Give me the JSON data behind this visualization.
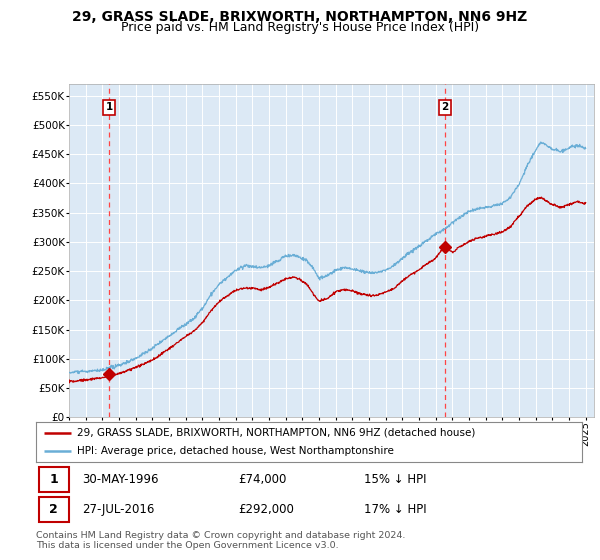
{
  "title": "29, GRASS SLADE, BRIXWORTH, NORTHAMPTON, NN6 9HZ",
  "subtitle": "Price paid vs. HM Land Registry's House Price Index (HPI)",
  "ylim": [
    0,
    570000
  ],
  "yticks": [
    0,
    50000,
    100000,
    150000,
    200000,
    250000,
    300000,
    350000,
    400000,
    450000,
    500000,
    550000
  ],
  "ytick_labels": [
    "£0",
    "£50K",
    "£100K",
    "£150K",
    "£200K",
    "£250K",
    "£300K",
    "£350K",
    "£400K",
    "£450K",
    "£500K",
    "£550K"
  ],
  "xlim_start": 1994.0,
  "xlim_end": 2025.5,
  "xticks": [
    1994,
    1995,
    1996,
    1997,
    1998,
    1999,
    2000,
    2001,
    2002,
    2003,
    2004,
    2005,
    2006,
    2007,
    2008,
    2009,
    2010,
    2011,
    2012,
    2013,
    2014,
    2015,
    2016,
    2017,
    2018,
    2019,
    2020,
    2021,
    2022,
    2023,
    2024,
    2025
  ],
  "background_color": "#ffffff",
  "plot_bg_color": "#dce9f5",
  "grid_color": "#ffffff",
  "hpi_color": "#6aaed6",
  "price_color": "#c00000",
  "vline_color": "#ff4444",
  "marker1_x": 1996.41,
  "marker1_y": 74000,
  "marker2_x": 2016.57,
  "marker2_y": 292000,
  "legend_line1": "29, GRASS SLADE, BRIXWORTH, NORTHAMPTON, NN6 9HZ (detached house)",
  "legend_line2": "HPI: Average price, detached house, West Northamptonshire",
  "footer": "Contains HM Land Registry data © Crown copyright and database right 2024.\nThis data is licensed under the Open Government Licence v3.0.",
  "title_fontsize": 10,
  "subtitle_fontsize": 9
}
